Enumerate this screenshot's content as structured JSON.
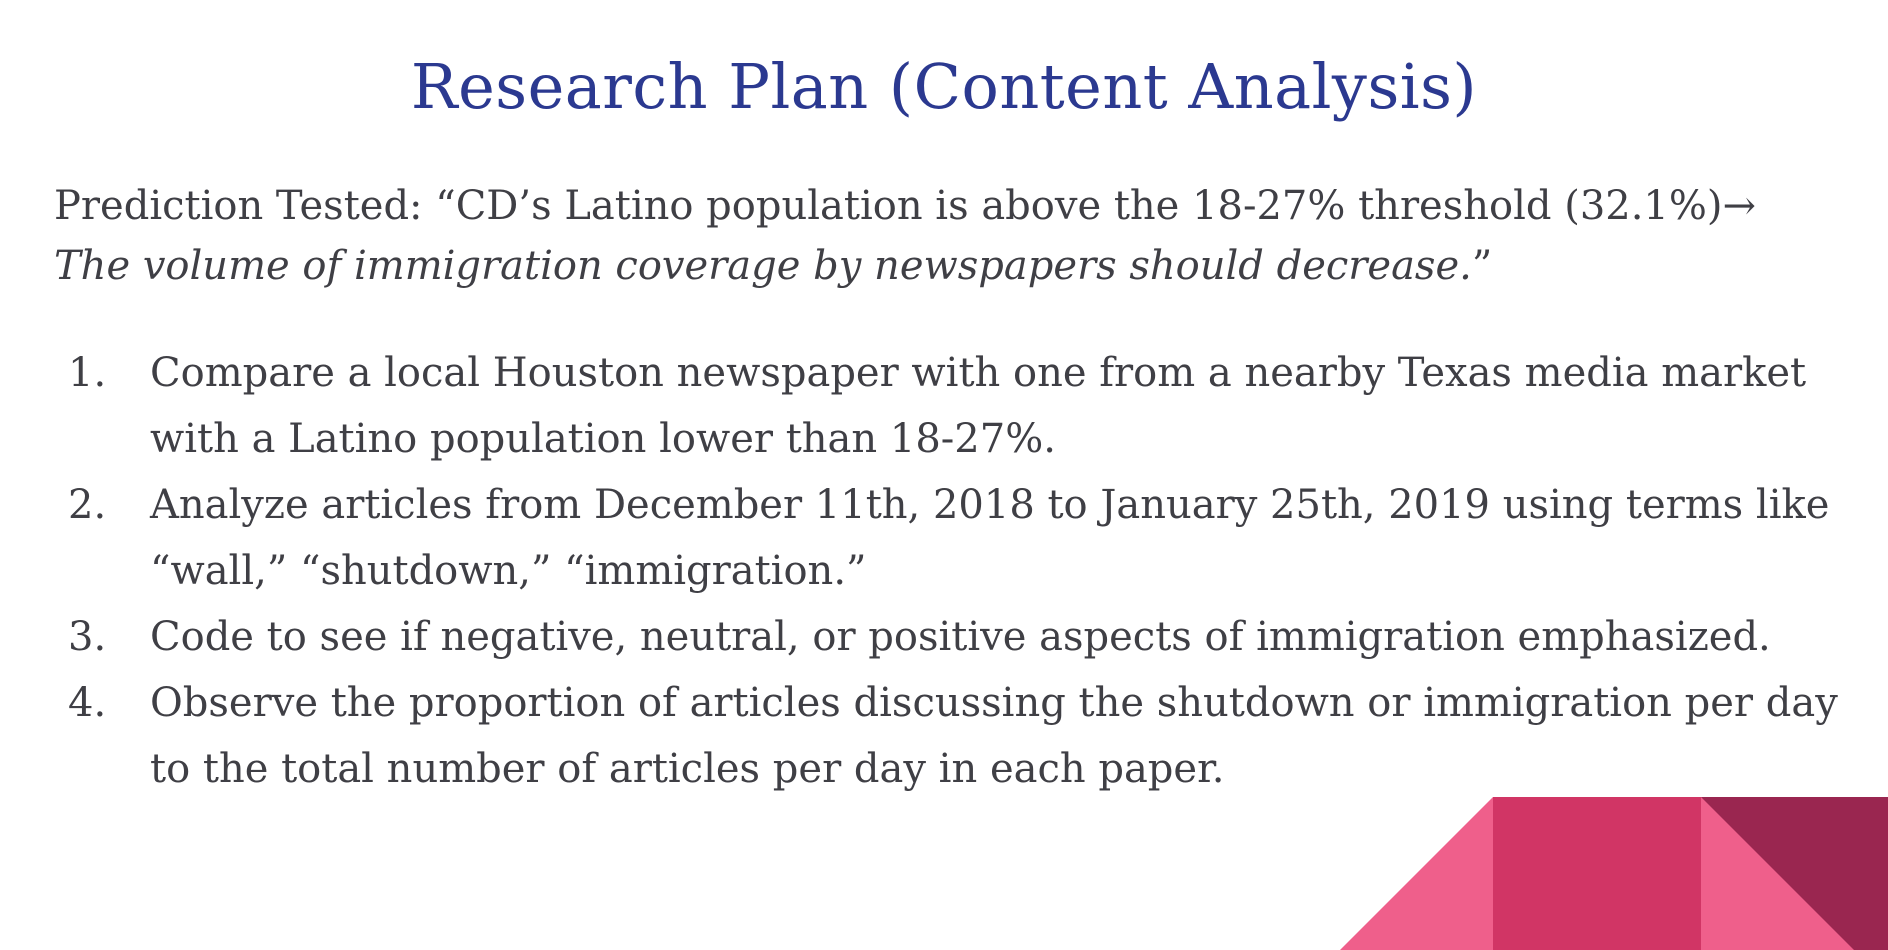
{
  "slide": {
    "title": "Research Plan (Content Analysis)",
    "prediction": {
      "lead": "Prediction Tested: “CD’s Latino population is above the 18-27% threshold (32.1%)→ ",
      "italic": "The volume of immigration coverage by newspapers should decrease.",
      "close": "”"
    },
    "steps": [
      {
        "num": "1.",
        "text": "Compare a local Houston newspaper with one from a nearby Texas media market with a Latino population lower than 18-27%."
      },
      {
        "num": "2.",
        "text": "Analyze articles from December 11th, 2018 to January 25th, 2019 using terms like “wall,” “shutdown,” “immigration.”"
      },
      {
        "num": "3.",
        "text": "Code to see if negative, neutral, or positive aspects of immigration emphasized."
      },
      {
        "num": "4.",
        "text": "Observe the proportion of articles discussing the shutdown or immigration per day to the total number of articles per day in each paper."
      }
    ]
  },
  "colors": {
    "title": "#2b3990",
    "body_text": "#3f3f45",
    "deco_light_pink": "#ef5f8b",
    "deco_magenta": "#d13565",
    "deco_dark_wine": "#9a2650"
  }
}
